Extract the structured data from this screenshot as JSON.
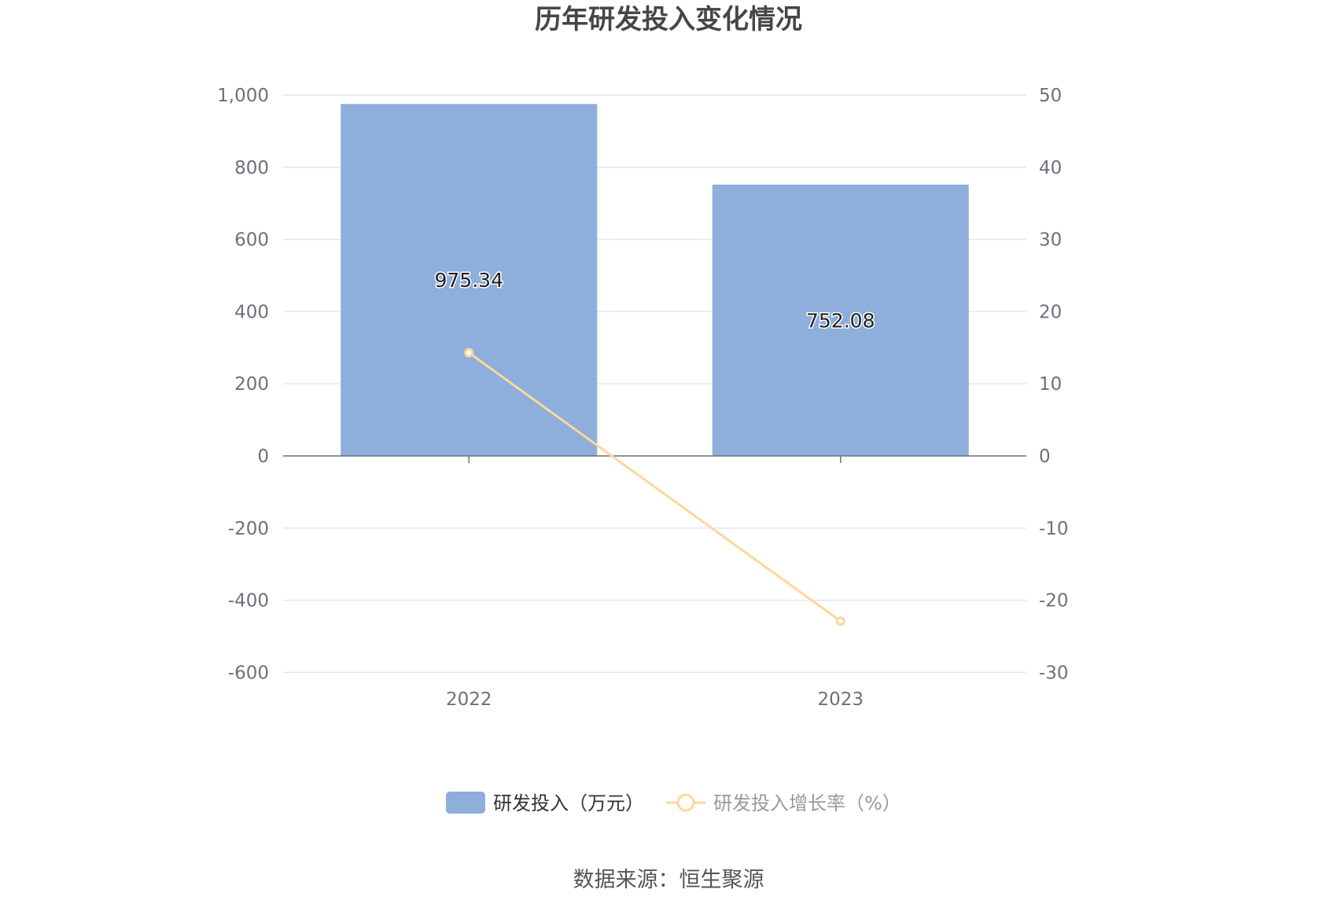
{
  "chart_data": {
    "type": "bar",
    "title": "历年研发投入变化情况",
    "categories": [
      "2022",
      "2023"
    ],
    "y_left": {
      "min": -600,
      "max": 1000,
      "ticks": [
        "1,000",
        "800",
        "600",
        "400",
        "200",
        "0",
        "-200",
        "-400",
        "-600"
      ],
      "tick_values": [
        1000,
        800,
        600,
        400,
        200,
        0,
        -200,
        -400,
        -600
      ]
    },
    "y_right": {
      "min": -30,
      "max": 50,
      "ticks": [
        "50",
        "40",
        "30",
        "20",
        "10",
        "0",
        "-10",
        "-20",
        "-30"
      ],
      "tick_values": [
        50,
        40,
        30,
        20,
        10,
        0,
        -10,
        -20,
        -30
      ]
    },
    "series": [
      {
        "name": "研发投入（万元）",
        "type": "bar",
        "axis": "left",
        "values": [
          975.34,
          752.08
        ],
        "labels": [
          "975.34",
          "752.08"
        ],
        "color": "#8eaedb"
      },
      {
        "name": "研发投入增长率（%）",
        "type": "line",
        "axis": "right",
        "values": [
          14.3,
          -22.89
        ],
        "color": "#fcd89a"
      }
    ],
    "grid": true,
    "legend": "bottom-center"
  },
  "source": "数据来源：恒生聚源"
}
